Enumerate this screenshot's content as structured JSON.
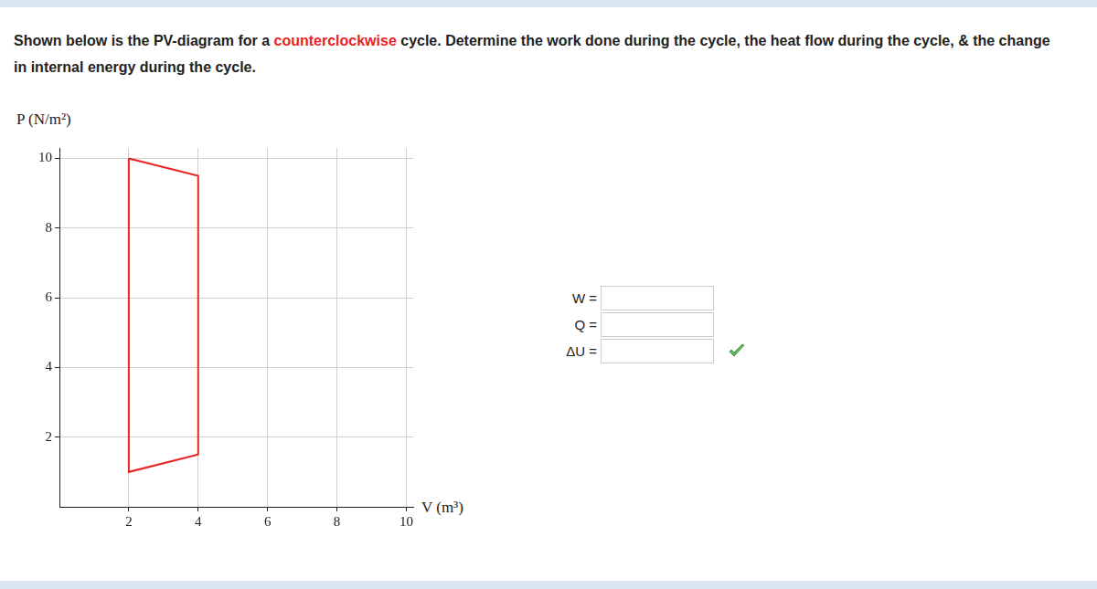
{
  "question": {
    "before": "Shown below is the PV-diagram for a ",
    "highlight": "counterclockwise",
    "after": " cycle. Determine the work done during the cycle, the heat flow during the cycle, & the change in internal energy during the cycle."
  },
  "chart_data": {
    "type": "line",
    "x_label": "V (m³)",
    "y_label": "P (N/m²)",
    "series": [
      {
        "color": "#e8221f",
        "x": [
          2,
          4,
          4,
          2,
          2
        ],
        "values": [
          10,
          9.5,
          1.5,
          1,
          10
        ]
      }
    ],
    "xlim": [
      0,
      10.2
    ],
    "ylim": [
      0,
      10.3
    ],
    "xticks": [
      2,
      4,
      6,
      8,
      10
    ],
    "yticks": [
      2,
      4,
      6,
      8,
      10
    ],
    "grid": true
  },
  "form": {
    "fields": [
      {
        "label": "W =",
        "correct": false
      },
      {
        "label": "Q =",
        "correct": false
      },
      {
        "label": "ΔU =",
        "correct": true
      }
    ]
  }
}
